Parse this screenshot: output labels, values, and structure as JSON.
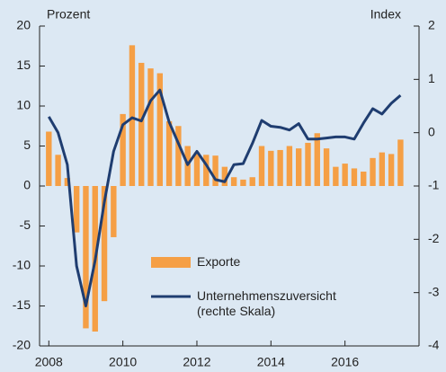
{
  "chart_data": {
    "type": "bar-line",
    "ylabel": "Prozent",
    "y2label": "Index",
    "x": [
      2008,
      2008.25,
      2008.5,
      2008.75,
      2009,
      2009.25,
      2009.5,
      2009.75,
      2010,
      2010.25,
      2010.5,
      2010.75,
      2011,
      2011.25,
      2011.5,
      2011.75,
      2012,
      2012.25,
      2012.5,
      2012.75,
      2013,
      2013.25,
      2013.5,
      2013.75,
      2014,
      2014.25,
      2014.5,
      2014.75,
      2015,
      2015.25,
      2015.5,
      2015.75,
      2016,
      2016.25,
      2016.5,
      2016.75,
      2017,
      2017.25,
      2017.5,
      2017.75
    ],
    "series": [
      {
        "name": "Exporte",
        "kind": "bar",
        "axis": "y",
        "color": "#f59f45",
        "values": [
          6.8,
          3.9,
          1.0,
          -5.8,
          -17.8,
          -18.2,
          -14.4,
          -6.4,
          9.0,
          17.6,
          15.4,
          14.7,
          14.1,
          8.1,
          7.5,
          5.0,
          4.2,
          3.9,
          3.8,
          2.4,
          1.1,
          0.8,
          1.1,
          5.0,
          4.4,
          4.5,
          5.0,
          4.7,
          5.4,
          6.6,
          4.7,
          2.4,
          2.8,
          2.2,
          1.8,
          3.5,
          4.2,
          4.0,
          5.8,
          null
        ]
      },
      {
        "name": "Unternehmenszuversicht (rechte Skala)",
        "kind": "line",
        "axis": "y2",
        "color": "#1f3d70",
        "values": [
          0.3,
          0.0,
          -0.6,
          -2.5,
          -3.25,
          -2.4,
          -1.3,
          -0.35,
          0.15,
          0.28,
          0.22,
          0.6,
          0.8,
          0.2,
          -0.2,
          -0.6,
          -0.35,
          -0.6,
          -0.88,
          -0.92,
          -0.6,
          -0.58,
          -0.2,
          0.23,
          0.12,
          0.1,
          0.05,
          0.17,
          -0.12,
          -0.12,
          -0.1,
          -0.08,
          -0.08,
          -0.12,
          0.18,
          0.45,
          0.35,
          0.55,
          0.7,
          null
        ]
      }
    ],
    "xlim": [
      2007.75,
      2018
    ],
    "xticks": [
      2008,
      2010,
      2012,
      2014,
      2016
    ],
    "ylim": [
      -20,
      20
    ],
    "yticks": [
      -20,
      -15,
      -10,
      -5,
      0,
      5,
      10,
      15,
      20
    ],
    "y2lim": [
      -4,
      2
    ],
    "y2ticks": [
      -4,
      -3,
      -2,
      -1,
      0,
      1,
      2
    ]
  }
}
